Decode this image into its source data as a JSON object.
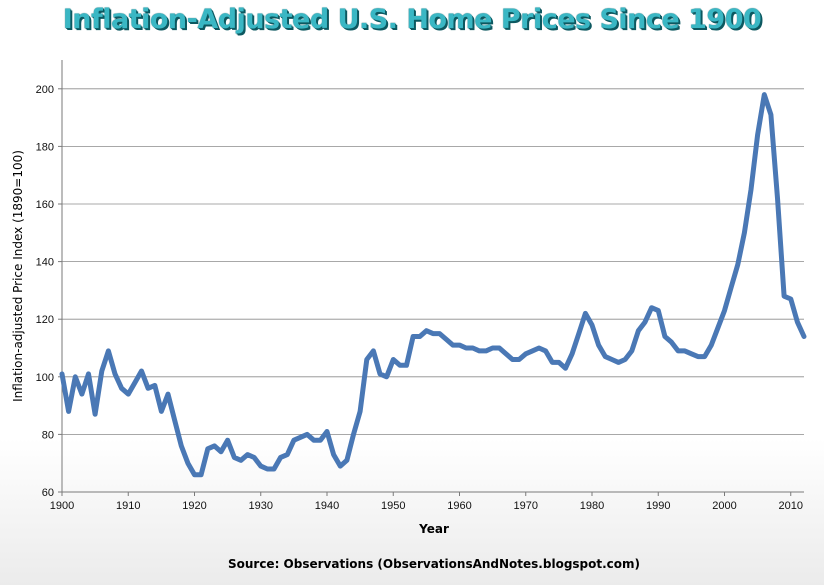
{
  "chart_data": {
    "type": "line",
    "title": "Inflation-Adjusted U.S. Home Prices Since 1900",
    "xlabel": "Year",
    "ylabel": "Inflation-adjusted Price Index (1890=100)",
    "source": "Source: Observations  (ObservationsAndNotes.blogspot.com)",
    "xlim": [
      1900,
      2012
    ],
    "ylim": [
      60,
      210
    ],
    "xticks": [
      1900,
      1910,
      1920,
      1930,
      1940,
      1950,
      1960,
      1970,
      1980,
      1990,
      2000,
      2010
    ],
    "yticks": [
      60,
      80,
      100,
      120,
      140,
      160,
      180,
      200
    ],
    "grid": "horizontal",
    "line_color": "#4a78b5",
    "series": [
      {
        "x": [
          1900,
          1901,
          1902,
          1903,
          1904,
          1905,
          1906,
          1907,
          1908,
          1909,
          1910,
          1911,
          1912,
          1913,
          1914,
          1915,
          1916,
          1917,
          1918,
          1919,
          1920,
          1921,
          1922,
          1923,
          1924,
          1925,
          1926,
          1927,
          1928,
          1929,
          1930,
          1931,
          1932,
          1933,
          1934,
          1935,
          1936,
          1937,
          1938,
          1939,
          1940,
          1941,
          1942,
          1943,
          1944,
          1945,
          1946,
          1947,
          1948,
          1949,
          1950,
          1951,
          1952,
          1953,
          1954,
          1955,
          1956,
          1957,
          1958,
          1959,
          1960,
          1961,
          1962,
          1963,
          1964,
          1965,
          1966,
          1967,
          1968,
          1969,
          1970,
          1971,
          1972,
          1973,
          1974,
          1975,
          1976,
          1977,
          1978,
          1979,
          1980,
          1981,
          1982,
          1983,
          1984,
          1985,
          1986,
          1987,
          1988,
          1989,
          1990,
          1991,
          1992,
          1993,
          1994,
          1995,
          1996,
          1997,
          1998,
          1999,
          2000,
          2001,
          2002,
          2003,
          2004,
          2005,
          2006,
          2007,
          2008,
          2009,
          2010,
          2011,
          2012
        ],
        "values": [
          101,
          88,
          100,
          94,
          101,
          87,
          102,
          109,
          101,
          96,
          94,
          98,
          102,
          96,
          97,
          88,
          94,
          85,
          76,
          70,
          66,
          66,
          75,
          76,
          74,
          78,
          72,
          71,
          73,
          72,
          69,
          68,
          68,
          72,
          73,
          78,
          79,
          80,
          78,
          78,
          81,
          73,
          69,
          71,
          80,
          88,
          106,
          109,
          101,
          100,
          106,
          104,
          104,
          114,
          114,
          116,
          115,
          115,
          113,
          111,
          111,
          110,
          110,
          109,
          109,
          110,
          110,
          108,
          106,
          106,
          108,
          109,
          110,
          109,
          105,
          105,
          103,
          108,
          115,
          122,
          118,
          111,
          107,
          106,
          105,
          106,
          109,
          116,
          119,
          124,
          123,
          114,
          112,
          109,
          109,
          108,
          107,
          107,
          111,
          117,
          123,
          131,
          139,
          150,
          165,
          184,
          198,
          191,
          162,
          128,
          127,
          119,
          114
        ]
      }
    ]
  }
}
